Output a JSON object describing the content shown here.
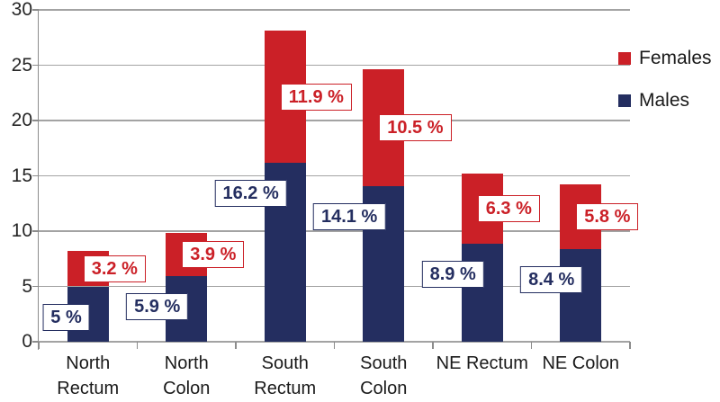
{
  "chart_data": {
    "type": "bar",
    "stacked": true,
    "title": "",
    "xlabel": "",
    "ylabel": "",
    "categories": [
      "North\nRectum",
      "North\nColon",
      "South\nRectum",
      "South\nColon",
      "NE Rectum",
      "NE Colon"
    ],
    "series": [
      {
        "name": "Males",
        "color": "#242e60",
        "values": [
          5,
          5.9,
          16.2,
          14.1,
          8.9,
          8.4
        ],
        "data_labels": [
          "5 %",
          "5.9 %",
          "16.2 %",
          "14.1 %",
          "8.9 %",
          "8.4 %"
        ]
      },
      {
        "name": "Females",
        "color": "#cb2027",
        "values": [
          3.2,
          3.9,
          11.9,
          10.5,
          6.3,
          5.8
        ],
        "data_labels": [
          "3.2 %",
          "3.9 %",
          "11.9 %",
          "10.5 %",
          "6.3 %",
          "5.8 %"
        ]
      }
    ],
    "y_ticks": [
      "0",
      "5",
      "10",
      "15",
      "20",
      "25",
      "30"
    ],
    "ylim": [
      0,
      30
    ],
    "grid": true,
    "gridline_color": "#a3a3a3",
    "axis_color": "#8c8c8c",
    "legend_position": "right",
    "legend_items": [
      {
        "label": "Females",
        "color": "#cb2027"
      },
      {
        "label": "Males",
        "color": "#242e60"
      }
    ]
  }
}
